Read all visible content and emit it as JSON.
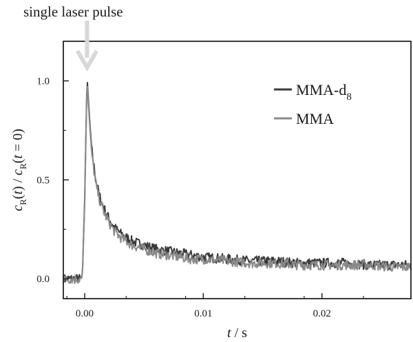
{
  "annotation": "single laser pulse",
  "chart_data": {
    "type": "line",
    "title": "",
    "xlabel_var": "t",
    "xlabel_unit": " / s",
    "ylabel_parts": [
      "c",
      "R",
      "(",
      "t",
      ") / ",
      "c",
      "R",
      "(",
      "t",
      " = 0)"
    ],
    "xlim": [
      -0.0018,
      0.0275
    ],
    "ylim": [
      -0.1,
      1.2
    ],
    "xticks": [
      0.0,
      0.01,
      0.02
    ],
    "xtick_labels": [
      "0.00",
      "0.01",
      "0.02"
    ],
    "yticks": [
      0.0,
      0.5,
      1.0
    ],
    "ytick_labels": [
      "0.0",
      "0.5",
      "1.0"
    ],
    "grid": false,
    "legend_position": "top-right",
    "pulse_time": 0.0002,
    "series": [
      {
        "name": "MMA-d",
        "name_subscript": "8",
        "color": "#3a3a3a",
        "x": [
          -0.0018,
          -0.001,
          -0.0002,
          0.0,
          0.0002,
          0.0004,
          0.0006,
          0.0008,
          0.001,
          0.0013,
          0.0016,
          0.002,
          0.0025,
          0.003,
          0.0035,
          0.004,
          0.005,
          0.006,
          0.007,
          0.008,
          0.009,
          0.01,
          0.012,
          0.014,
          0.016,
          0.018,
          0.02,
          0.022,
          0.024,
          0.026,
          0.0275
        ],
        "values": [
          0.0,
          0.0,
          0.0,
          0.4,
          1.02,
          0.82,
          0.65,
          0.56,
          0.48,
          0.41,
          0.36,
          0.31,
          0.26,
          0.23,
          0.21,
          0.19,
          0.17,
          0.15,
          0.14,
          0.13,
          0.12,
          0.11,
          0.1,
          0.09,
          0.09,
          0.08,
          0.08,
          0.08,
          0.07,
          0.07,
          0.07
        ]
      },
      {
        "name": "MMA",
        "name_subscript": "",
        "color": "#8a8a8a",
        "x": [
          -0.0018,
          -0.001,
          -0.0002,
          0.0,
          0.0002,
          0.0004,
          0.0006,
          0.0008,
          0.001,
          0.0013,
          0.0016,
          0.002,
          0.0025,
          0.003,
          0.0035,
          0.004,
          0.005,
          0.006,
          0.007,
          0.008,
          0.009,
          0.01,
          0.012,
          0.014,
          0.016,
          0.018,
          0.02,
          0.022,
          0.024,
          0.026,
          0.0275
        ],
        "values": [
          0.0,
          0.0,
          0.0,
          0.38,
          1.0,
          0.8,
          0.63,
          0.54,
          0.46,
          0.39,
          0.34,
          0.29,
          0.24,
          0.21,
          0.19,
          0.17,
          0.15,
          0.13,
          0.12,
          0.11,
          0.1,
          0.1,
          0.09,
          0.08,
          0.08,
          0.07,
          0.07,
          0.07,
          0.07,
          0.06,
          0.06
        ]
      }
    ]
  }
}
